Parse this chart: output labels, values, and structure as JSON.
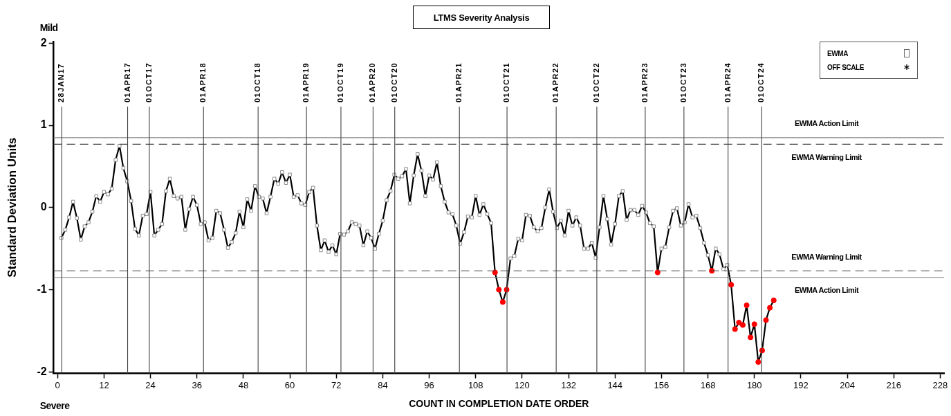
{
  "chart_data": {
    "type": "line",
    "title": "LTMS Severity Analysis",
    "xlabel": "COUNT IN COMPLETION DATE ORDER",
    "ylabel": "Standard Deviation Units",
    "annotations": [
      "Mild",
      "Severe"
    ],
    "x": [
      1,
      2,
      3,
      4,
      5,
      6,
      7,
      8,
      9,
      10,
      11,
      12,
      13,
      14,
      15,
      16,
      17,
      18,
      19,
      20,
      21,
      22,
      23,
      24,
      25,
      26,
      27,
      28,
      29,
      30,
      31,
      32,
      33,
      34,
      35,
      36,
      37,
      38,
      39,
      40,
      41,
      42,
      43,
      44,
      45,
      46,
      47,
      48,
      49,
      50,
      51,
      52,
      53,
      54,
      55,
      56,
      57,
      58,
      59,
      60,
      61,
      62,
      63,
      64,
      65,
      66,
      67,
      68,
      69,
      70,
      71,
      72,
      73,
      74,
      75,
      76,
      77,
      78,
      79,
      80,
      81,
      82,
      83,
      84,
      85,
      86,
      87,
      88,
      89,
      90,
      91,
      92,
      93,
      94,
      95,
      96,
      97,
      98,
      99,
      100,
      101,
      102,
      103,
      104,
      105,
      106,
      107,
      108,
      109,
      110,
      111,
      112,
      113,
      114,
      115,
      116,
      117,
      118,
      119,
      120,
      121,
      122,
      123,
      124,
      125,
      126,
      127,
      128,
      129,
      130,
      131,
      132,
      133,
      134,
      135,
      136,
      137,
      138,
      139,
      140,
      141,
      142,
      143,
      144,
      145,
      146,
      147,
      148,
      149,
      150,
      151,
      152,
      153,
      154,
      155,
      156,
      157,
      158,
      159,
      160,
      161,
      162,
      163,
      164,
      165,
      166,
      167,
      168,
      169,
      170,
      171,
      172,
      173,
      174,
      175,
      176,
      177,
      178,
      179,
      180,
      181,
      182,
      183,
      184,
      185
    ],
    "series": [
      {
        "name": "EWMA",
        "color": "#000000",
        "marker": "square",
        "values": [
          -0.37,
          -0.27,
          -0.12,
          0.07,
          -0.13,
          -0.39,
          -0.23,
          -0.18,
          -0.05,
          0.14,
          0.07,
          0.19,
          0.16,
          0.23,
          0.58,
          0.75,
          0.48,
          0.32,
          0.08,
          -0.26,
          -0.34,
          -0.1,
          -0.08,
          0.19,
          -0.34,
          -0.27,
          -0.2,
          0.2,
          0.35,
          0.14,
          0.11,
          0.13,
          -0.27,
          -0.02,
          0.13,
          0.03,
          -0.2,
          -0.18,
          -0.4,
          -0.37,
          -0.04,
          -0.07,
          -0.27,
          -0.49,
          -0.42,
          -0.31,
          -0.05,
          -0.24,
          0.1,
          -0.04,
          0.26,
          0.13,
          0.11,
          -0.07,
          0.13,
          0.35,
          0.29,
          0.43,
          0.3,
          0.4,
          0.13,
          0.15,
          0.05,
          0.03,
          0.19,
          0.24,
          -0.22,
          -0.52,
          -0.4,
          -0.54,
          -0.46,
          -0.57,
          -0.32,
          -0.33,
          -0.29,
          -0.18,
          -0.2,
          -0.22,
          -0.46,
          -0.29,
          -0.37,
          -0.5,
          -0.32,
          -0.16,
          0.09,
          0.2,
          0.4,
          0.35,
          0.38,
          0.47,
          0.05,
          0.39,
          0.65,
          0.45,
          0.14,
          0.39,
          0.34,
          0.55,
          0.26,
          0.07,
          -0.06,
          -0.08,
          -0.22,
          -0.44,
          -0.3,
          -0.11,
          -0.12,
          0.14,
          -0.09,
          0.04,
          -0.08,
          -0.19,
          -0.79,
          -1.0,
          -1.15,
          -1.0,
          -0.62,
          -0.59,
          -0.38,
          -0.4,
          -0.09,
          -0.1,
          -0.24,
          -0.29,
          -0.25,
          0.0,
          0.22,
          -0.05,
          -0.25,
          -0.16,
          -0.34,
          -0.04,
          -0.22,
          -0.12,
          -0.22,
          -0.5,
          -0.5,
          -0.43,
          -0.61,
          -0.24,
          0.14,
          -0.14,
          -0.45,
          -0.2,
          0.14,
          0.2,
          -0.15,
          -0.03,
          -0.03,
          -0.09,
          0.02,
          -0.06,
          -0.19,
          -0.23,
          -0.79,
          -0.5,
          -0.48,
          -0.24,
          -0.04,
          -0.01,
          -0.22,
          -0.18,
          0.04,
          -0.12,
          -0.1,
          -0.25,
          -0.43,
          -0.58,
          -0.77,
          -0.5,
          -0.57,
          -0.75,
          -0.7,
          -0.94,
          -1.48,
          -1.4,
          -1.43,
          -1.19,
          -1.58,
          -1.42,
          -1.88,
          -1.74,
          -1.37,
          -1.22,
          -1.13
        ]
      },
      {
        "type": "scatter",
        "color": "#ff0000",
        "marker": "circle",
        "x": [
          113,
          114,
          115,
          116,
          155,
          169,
          174,
          175,
          176,
          177,
          178,
          179,
          180,
          181,
          182,
          183,
          184,
          185
        ],
        "values": [
          -0.79,
          -1.0,
          -1.15,
          -1.0,
          -0.79,
          -0.77,
          -0.94,
          -1.48,
          -1.4,
          -1.43,
          -1.19,
          -1.58,
          -1.42,
          -1.88,
          -1.74,
          -1.37,
          -1.22,
          -1.13
        ]
      },
      {
        "name": "OFF SCALE",
        "type": "scatter",
        "color": "#000000",
        "marker": "star",
        "values": [
          null,
          null,
          null,
          null,
          null,
          null,
          null,
          null,
          null,
          null,
          null,
          null,
          null,
          null,
          null,
          null,
          null,
          null,
          null,
          null,
          null,
          null,
          null,
          null,
          null,
          null,
          null,
          null,
          null,
          null,
          null,
          null,
          null,
          null,
          null,
          null,
          null,
          null,
          null,
          null,
          null,
          null,
          null,
          null,
          null,
          null,
          null,
          null,
          null,
          null,
          null,
          null,
          null,
          null,
          null,
          null,
          null,
          null,
          null,
          null,
          null,
          null,
          null,
          null,
          null,
          null,
          null,
          null,
          null,
          null,
          null,
          null,
          null,
          null,
          null,
          null,
          null,
          null,
          null,
          null,
          null,
          null,
          null,
          null,
          null,
          null,
          null,
          null,
          null,
          null,
          null,
          null,
          null,
          null,
          null,
          null,
          null,
          null,
          null,
          null,
          null,
          null,
          null,
          null,
          null,
          null,
          null,
          null,
          null,
          null,
          null,
          null,
          null,
          null,
          null,
          null,
          null,
          null,
          null,
          null,
          null,
          null,
          null,
          null,
          null,
          null,
          null,
          null,
          null,
          null,
          null,
          null,
          null,
          null,
          null,
          null,
          null,
          null,
          null,
          null,
          null,
          null,
          null,
          null,
          null,
          null,
          null,
          null,
          null,
          null,
          null,
          null,
          null,
          null,
          null,
          null,
          null,
          null,
          null,
          null,
          null,
          null,
          null,
          null,
          null,
          null,
          null,
          null,
          null,
          null,
          null,
          null,
          null,
          null,
          null,
          null,
          null,
          null,
          null,
          null,
          null,
          null,
          null,
          null,
          null
        ]
      }
    ],
    "xlim": [
      -1,
      229
    ],
    "xticks": [
      0,
      12,
      24,
      36,
      48,
      60,
      72,
      84,
      96,
      108,
      120,
      132,
      144,
      156,
      168,
      180,
      192,
      204,
      216,
      228
    ],
    "ylim": [
      -2.02,
      2.02
    ],
    "yticks": [
      -2,
      -1,
      0,
      1,
      2
    ],
    "ref_lines": [
      {
        "axis": "y",
        "value": 0.85,
        "label": "EWMA Action Limit",
        "color": "#808080",
        "line_style": "solid"
      },
      {
        "axis": "y",
        "value": 0.77,
        "label": "EWMA Warning Limit",
        "color": "#404040",
        "line_style": "dashed"
      },
      {
        "axis": "y",
        "value": -0.77,
        "label": "EWMA Warning Limit",
        "color": "#404040",
        "line_style": "dashed"
      },
      {
        "axis": "y",
        "value": -0.85,
        "label": "EWMA Action Limit",
        "color": "#808080",
        "line_style": "solid"
      },
      {
        "axis": "x",
        "value": 1.1,
        "label": "28JAN17",
        "color": "#404040"
      },
      {
        "axis": "x",
        "value": 18.1,
        "label": "01APR17",
        "color": "#404040"
      },
      {
        "axis": "x",
        "value": 23.7,
        "label": "01OCT17",
        "color": "#404040"
      },
      {
        "axis": "x",
        "value": 37.7,
        "label": "01APR18",
        "color": "#404040"
      },
      {
        "axis": "x",
        "value": 51.8,
        "label": "01OCT18",
        "color": "#404040"
      },
      {
        "axis": "x",
        "value": 64.3,
        "label": "01APR19",
        "color": "#404040"
      },
      {
        "axis": "x",
        "value": 73.2,
        "label": "01OCT19",
        "color": "#404040"
      },
      {
        "axis": "x",
        "value": 81.5,
        "label": "01APR20",
        "color": "#404040"
      },
      {
        "axis": "x",
        "value": 87.1,
        "label": "01OCT20",
        "color": "#404040"
      },
      {
        "axis": "x",
        "value": 103.8,
        "label": "01APR21",
        "color": "#404040"
      },
      {
        "axis": "x",
        "value": 116.1,
        "label": "01OCT21",
        "color": "#404040"
      },
      {
        "axis": "x",
        "value": 128.8,
        "label": "01APR22",
        "color": "#404040"
      },
      {
        "axis": "x",
        "value": 139.3,
        "label": "01OCT22",
        "color": "#404040"
      },
      {
        "axis": "x",
        "value": 151.8,
        "label": "01APR23",
        "color": "#404040"
      },
      {
        "axis": "x",
        "value": 161.8,
        "label": "01OCT23",
        "color": "#404040"
      },
      {
        "axis": "x",
        "value": 173.2,
        "label": "01APR24",
        "color": "#404040"
      },
      {
        "axis": "x",
        "value": 181.9,
        "label": "01OCT24",
        "color": "#404040"
      }
    ],
    "legend": "top right",
    "grid": false
  }
}
